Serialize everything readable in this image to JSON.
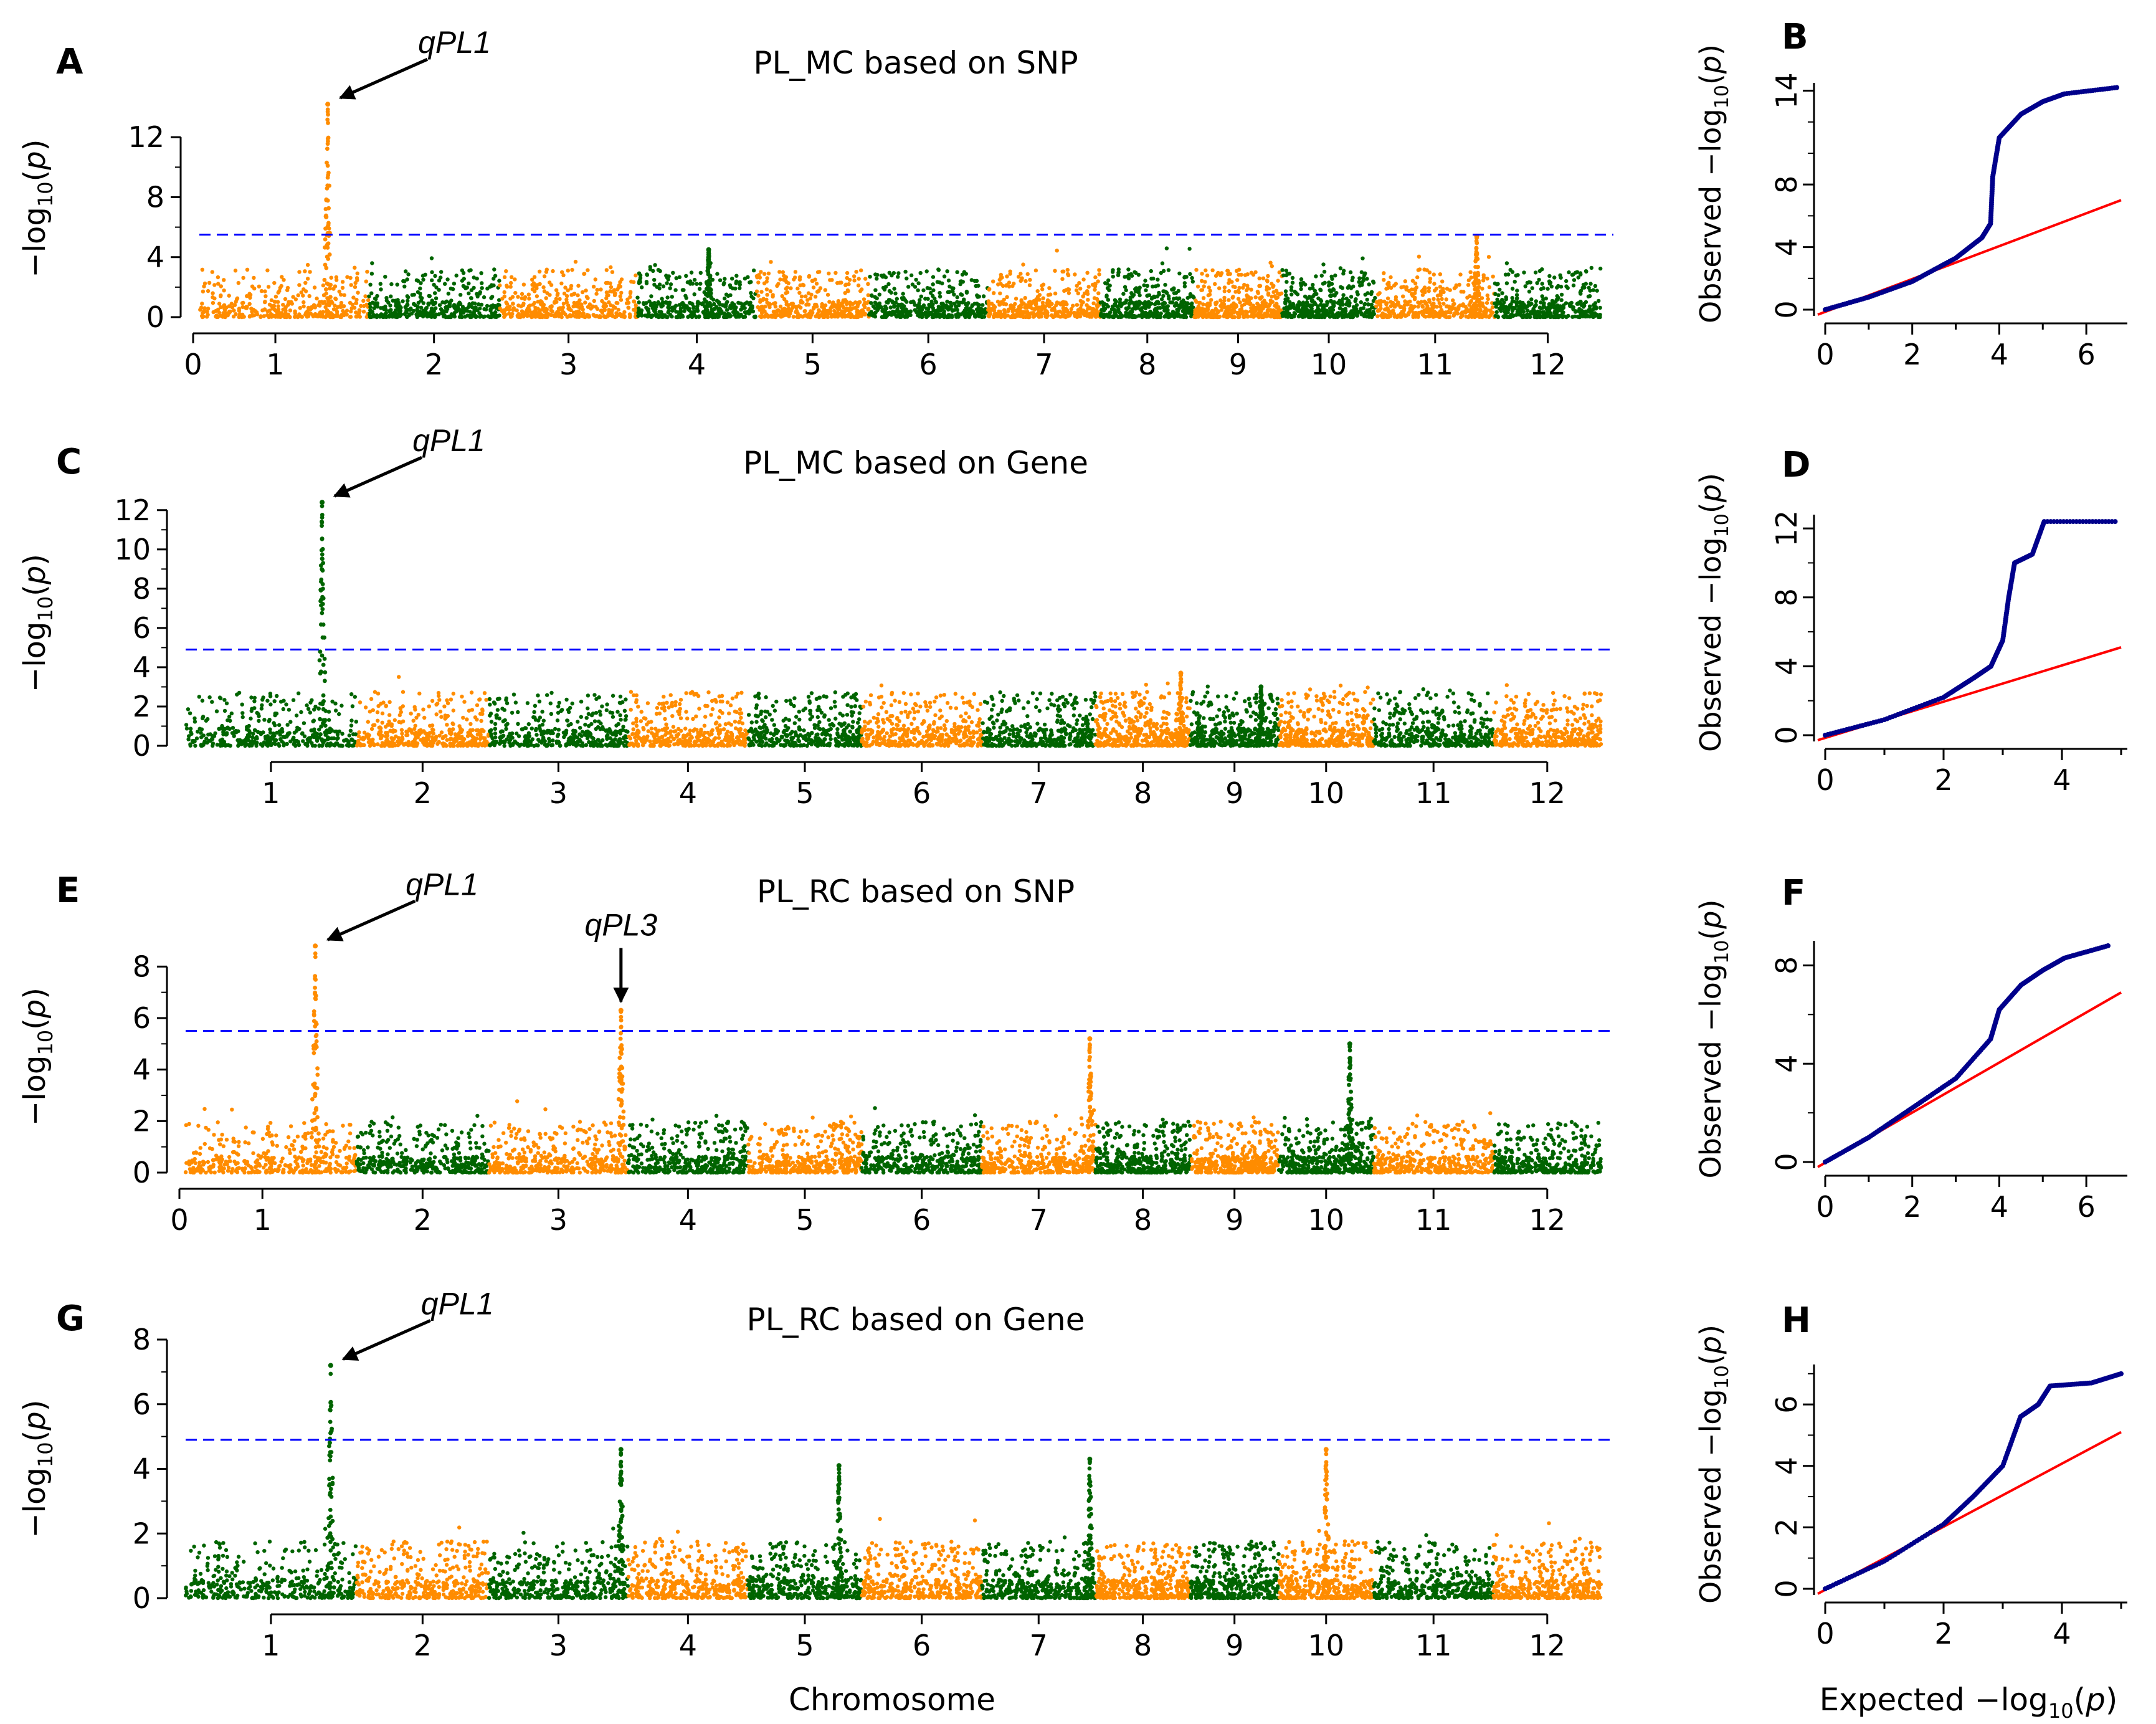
{
  "figure": {
    "x_axis_title": "Chromosome",
    "qq_x_axis_title": "Expected",
    "colors": {
      "orange": "#ff8c00",
      "green": "#006400",
      "threshold": "#0000ff",
      "qq_points": "#00008b",
      "qq_line": "#ff0000"
    }
  },
  "chart_data": [
    {
      "type": "scatter",
      "panel": "A",
      "title": "PL_MC based on SNP",
      "ylabel": "−log10(p)",
      "xlabel": "Chromosome",
      "yticks": [
        0,
        4,
        8,
        12
      ],
      "ylim": [
        0,
        14.5
      ],
      "threshold": 5.5,
      "color_start": "orange",
      "chromosomes": [
        "1",
        "2",
        "3",
        "4",
        "5",
        "6",
        "7",
        "8",
        "9",
        "10",
        "11",
        "12"
      ],
      "xtick_labels": [
        "0",
        "1",
        "2",
        "3",
        "4",
        "5",
        "6",
        "7",
        "8",
        "9",
        "10",
        "11",
        "12"
      ],
      "xtick_positions": [
        0,
        0.6,
        2,
        3,
        4,
        5,
        6,
        7,
        8,
        9,
        10,
        11,
        12
      ],
      "peaks": [
        {
          "chr": 1,
          "pos": 0.76,
          "y": 14.2
        },
        {
          "chr": 11,
          "pos": 0.85,
          "y": 5.4
        },
        {
          "chr": 4,
          "pos": 0.6,
          "y": 4.5
        }
      ],
      "annotations": [
        {
          "text": "qPL1",
          "chr": 1,
          "pos": 0.76,
          "y": 14.2,
          "dir": "diag"
        }
      ]
    },
    {
      "type": "scatter",
      "panel": "C",
      "title": "PL_MC based on Gene",
      "ylabel": "−log10(p)",
      "xlabel": "Chromosome",
      "yticks": [
        0,
        2,
        4,
        6,
        8,
        10,
        12
      ],
      "ylim": [
        0,
        12.5
      ],
      "threshold": 4.9,
      "color_start": "green",
      "chromosomes": [
        "1",
        "2",
        "3",
        "4",
        "5",
        "6",
        "7",
        "8",
        "9",
        "10",
        "11",
        "12"
      ],
      "xtick_labels": [
        "1",
        "2",
        "3",
        "4",
        "5",
        "6",
        "7",
        "8",
        "9",
        "10",
        "11",
        "12"
      ],
      "xtick_positions": [
        1,
        2,
        3,
        4,
        5,
        6,
        7,
        8,
        9,
        10,
        11,
        12
      ],
      "peaks": [
        {
          "chr": 1,
          "pos": 0.8,
          "y": 12.4
        },
        {
          "chr": 8,
          "pos": 0.9,
          "y": 3.7
        },
        {
          "chr": 9,
          "pos": 0.8,
          "y": 3.0
        }
      ],
      "annotations": [
        {
          "text": "qPL1",
          "chr": 1,
          "pos": 0.8,
          "y": 12.4,
          "dir": "diag"
        }
      ]
    },
    {
      "type": "scatter",
      "panel": "E",
      "title": "PL_RC based on SNP",
      "ylabel": "−log10(p)",
      "xlabel": "Chromosome",
      "yticks": [
        0,
        2,
        4,
        6,
        8
      ],
      "ylim": [
        0,
        9
      ],
      "threshold": 5.5,
      "color_start": "orange",
      "chromosomes": [
        "1",
        "2",
        "3",
        "4",
        "5",
        "6",
        "7",
        "8",
        "9",
        "10",
        "11",
        "12"
      ],
      "xtick_labels": [
        "0",
        "1",
        "2",
        "3",
        "4",
        "5",
        "6",
        "7",
        "8",
        "9",
        "10",
        "11",
        "12"
      ],
      "xtick_positions": [
        0,
        0.6,
        2,
        3,
        4,
        5,
        6,
        7,
        8,
        9,
        10,
        11,
        12
      ],
      "peaks": [
        {
          "chr": 1,
          "pos": 0.76,
          "y": 8.8
        },
        {
          "chr": 3,
          "pos": 0.95,
          "y": 6.3
        },
        {
          "chr": 7,
          "pos": 0.95,
          "y": 5.2
        },
        {
          "chr": 10,
          "pos": 0.75,
          "y": 5.0
        }
      ],
      "annotations": [
        {
          "text": "qPL1",
          "chr": 1,
          "pos": 0.76,
          "y": 8.8,
          "dir": "diag"
        },
        {
          "text": "qPL3",
          "chr": 3,
          "pos": 0.95,
          "y": 6.3,
          "dir": "down"
        }
      ]
    },
    {
      "type": "scatter",
      "panel": "G",
      "title": "PL_RC based on Gene",
      "ylabel": "−log10(p)",
      "xlabel": "Chromosome",
      "yticks": [
        0,
        2,
        4,
        6,
        8
      ],
      "ylim": [
        0,
        8
      ],
      "threshold": 4.9,
      "color_start": "green",
      "chromosomes": [
        "1",
        "2",
        "3",
        "4",
        "5",
        "6",
        "7",
        "8",
        "9",
        "10",
        "11",
        "12"
      ],
      "xtick_labels": [
        "1",
        "2",
        "3",
        "4",
        "5",
        "6",
        "7",
        "8",
        "9",
        "10",
        "11",
        "12"
      ],
      "xtick_positions": [
        1,
        2,
        3,
        4,
        5,
        6,
        7,
        8,
        9,
        10,
        11,
        12
      ],
      "peaks": [
        {
          "chr": 1,
          "pos": 0.85,
          "y": 7.2
        },
        {
          "chr": 3,
          "pos": 0.95,
          "y": 4.6
        },
        {
          "chr": 10,
          "pos": 0.5,
          "y": 4.6
        },
        {
          "chr": 5,
          "pos": 0.8,
          "y": 4.1
        },
        {
          "chr": 7,
          "pos": 0.95,
          "y": 4.3
        }
      ],
      "annotations": [
        {
          "text": "qPL1",
          "chr": 1,
          "pos": 0.85,
          "y": 7.2,
          "dir": "diag"
        }
      ]
    },
    {
      "type": "scatter",
      "panel": "B",
      "subtype": "qq",
      "xlabel": "Expected −log10(p)",
      "ylabel": "Observed −log10(p)",
      "xticks": [
        0,
        2,
        4,
        6
      ],
      "yticks": [
        0,
        4,
        8,
        14
      ],
      "xlim": [
        0,
        6.8
      ],
      "ylim": [
        0,
        14.5
      ],
      "curve": [
        [
          0,
          0
        ],
        [
          1,
          0.8
        ],
        [
          2,
          1.8
        ],
        [
          3,
          3.3
        ],
        [
          3.6,
          4.6
        ],
        [
          3.8,
          5.5
        ],
        [
          3.85,
          8.5
        ],
        [
          4,
          11
        ],
        [
          4.5,
          12.5
        ],
        [
          5,
          13.3
        ],
        [
          5.5,
          13.8
        ],
        [
          6.7,
          14.2
        ]
      ],
      "expected_line": [
        [
          0,
          0
        ],
        [
          6.8,
          7
        ]
      ]
    },
    {
      "type": "scatter",
      "panel": "D",
      "subtype": "qq",
      "xlabel": "Expected −log10(p)",
      "ylabel": "Observed −log10(p)",
      "xticks": [
        0,
        2,
        4
      ],
      "yticks": [
        0,
        4,
        8,
        12
      ],
      "xlim": [
        0,
        5
      ],
      "ylim": [
        0,
        12.8
      ],
      "curve": [
        [
          0,
          0
        ],
        [
          1,
          0.9
        ],
        [
          2,
          2.2
        ],
        [
          2.5,
          3.3
        ],
        [
          2.8,
          4
        ],
        [
          3.0,
          5.5
        ],
        [
          3.1,
          8
        ],
        [
          3.2,
          10
        ],
        [
          3.5,
          10.5
        ],
        [
          3.7,
          12.4
        ],
        [
          4.9,
          12.4
        ]
      ],
      "expected_line": [
        [
          0,
          0
        ],
        [
          5,
          5.1
        ]
      ]
    },
    {
      "type": "scatter",
      "panel": "F",
      "subtype": "qq",
      "xlabel": "Expected −log10(p)",
      "ylabel": "Observed −log10(p)",
      "xticks": [
        0,
        2,
        4,
        6
      ],
      "yticks": [
        0,
        4,
        8
      ],
      "xlim": [
        0,
        6.8
      ],
      "ylim": [
        0,
        9
      ],
      "curve": [
        [
          0,
          0
        ],
        [
          1,
          1
        ],
        [
          2,
          2.2
        ],
        [
          3,
          3.4
        ],
        [
          3.8,
          5
        ],
        [
          4,
          6.2
        ],
        [
          4.5,
          7.2
        ],
        [
          5,
          7.8
        ],
        [
          5.5,
          8.3
        ],
        [
          6.5,
          8.8
        ]
      ],
      "expected_line": [
        [
          0,
          0
        ],
        [
          6.8,
          6.9
        ]
      ]
    },
    {
      "type": "scatter",
      "panel": "H",
      "subtype": "qq",
      "xlabel": "Expected −log10(p)",
      "ylabel": "Observed −log10(p)",
      "xticks": [
        0,
        2,
        4
      ],
      "yticks": [
        0,
        2,
        4,
        6
      ],
      "xlim": [
        0,
        5
      ],
      "ylim": [
        0,
        7.3
      ],
      "curve": [
        [
          0,
          0
        ],
        [
          1,
          0.9
        ],
        [
          2,
          2.1
        ],
        [
          2.5,
          3
        ],
        [
          3,
          4
        ],
        [
          3.3,
          5.6
        ],
        [
          3.6,
          6
        ],
        [
          3.8,
          6.6
        ],
        [
          4.5,
          6.7
        ],
        [
          5,
          7.0
        ]
      ],
      "expected_line": [
        [
          0,
          0
        ],
        [
          5,
          5.1
        ]
      ]
    }
  ]
}
